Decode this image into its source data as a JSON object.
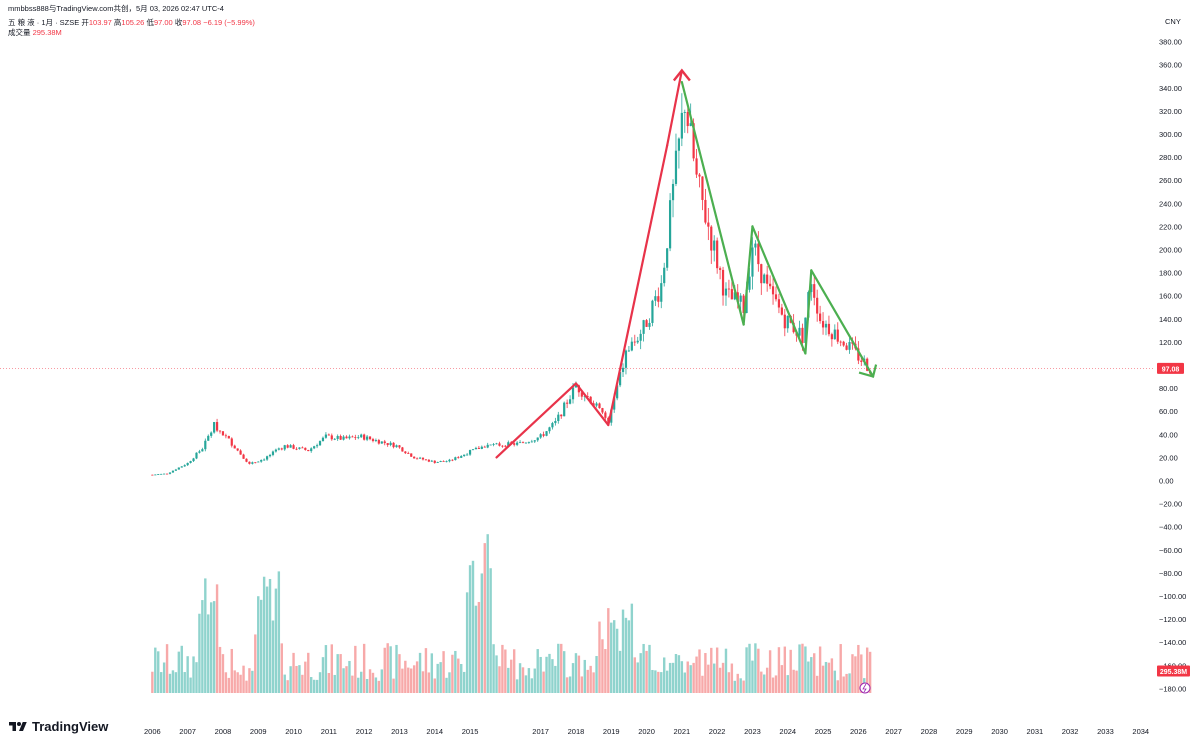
{
  "header": {
    "attribution": "mmbbss888与TradingView.com共创，5月 03, 2026 02:47 UTC-4"
  },
  "legend": {
    "symbol": "五 粮 液 · 1月 · SZSE",
    "open_label": "开",
    "open_value": "103.97",
    "high_label": "高",
    "high_value": "105.26",
    "low_label": "低",
    "low_value": "97.00",
    "close_label": "收",
    "close_value": "97.08",
    "change": "−6.19 (−5.99%)",
    "volume_label": "成交量",
    "volume_value": "295.38M"
  },
  "branding": {
    "logo_text": "TradingView",
    "icon": "tradingview-logo-icon"
  },
  "colors": {
    "up": "#26a69a",
    "down": "#f23645",
    "up_vol": "#8fd3cd",
    "down_vol": "#f7a9a9",
    "annot_red": "#e8334a",
    "annot_green": "#4caf50"
  },
  "chart_data": {
    "type": "candlestick",
    "currency": "CNY",
    "interval": "1月",
    "last_close": 97.08,
    "last_close_label": "97.08",
    "last_volume_label": "295.38M",
    "price_axis_ticks": [
      "380.00",
      "360.00",
      "340.00",
      "320.00",
      "300.00",
      "280.00",
      "260.00",
      "240.00",
      "220.00",
      "200.00",
      "180.00",
      "160.00",
      "140.00",
      "120.00",
      "100.00",
      "80.00",
      "60.00",
      "40.00",
      "20.00",
      "0.00",
      "−20.00",
      "−40.00",
      "−60.00",
      "−80.00",
      "−100.00",
      "−120.00",
      "−140.00",
      "−160.00",
      "−180.00"
    ],
    "x_axis_ticks": [
      "2006",
      "2007",
      "2008",
      "2009",
      "2010",
      "2011",
      "2012",
      "2013",
      "2014",
      "2015",
      "2017",
      "2018",
      "2019",
      "2020",
      "2021",
      "2022",
      "2023",
      "2024",
      "2025",
      "2026",
      "2027",
      "2028",
      "2029",
      "2030",
      "2031",
      "2032",
      "2033",
      "2034"
    ],
    "approx_monthly_close_path": [
      {
        "date": "2006-01",
        "price": 5
      },
      {
        "date": "2006-06",
        "price": 6
      },
      {
        "date": "2007-01",
        "price": 15
      },
      {
        "date": "2007-06",
        "price": 28
      },
      {
        "date": "2007-10",
        "price": 48
      },
      {
        "date": "2008-03",
        "price": 35
      },
      {
        "date": "2008-10",
        "price": 14
      },
      {
        "date": "2009-03",
        "price": 19
      },
      {
        "date": "2009-10",
        "price": 30
      },
      {
        "date": "2010-06",
        "price": 26
      },
      {
        "date": "2010-12",
        "price": 38
      },
      {
        "date": "2011-06",
        "price": 36
      },
      {
        "date": "2011-12",
        "price": 38
      },
      {
        "date": "2012-06",
        "price": 34
      },
      {
        "date": "2012-12",
        "price": 30
      },
      {
        "date": "2013-06",
        "price": 20
      },
      {
        "date": "2014-01",
        "price": 16
      },
      {
        "date": "2014-06",
        "price": 17
      },
      {
        "date": "2015-01",
        "price": 25
      },
      {
        "date": "2015-06",
        "price": 30
      },
      {
        "date": "2016-06",
        "price": 32
      },
      {
        "date": "2017-01",
        "price": 38
      },
      {
        "date": "2017-06",
        "price": 50
      },
      {
        "date": "2018-01",
        "price": 82
      },
      {
        "date": "2018-06",
        "price": 70
      },
      {
        "date": "2018-12",
        "price": 50
      },
      {
        "date": "2019-06",
        "price": 110
      },
      {
        "date": "2019-12",
        "price": 132
      },
      {
        "date": "2020-06",
        "price": 170
      },
      {
        "date": "2020-12",
        "price": 290
      },
      {
        "date": "2021-02",
        "price": 330
      },
      {
        "date": "2021-06",
        "price": 260
      },
      {
        "date": "2021-10",
        "price": 220
      },
      {
        "date": "2022-04",
        "price": 160
      },
      {
        "date": "2022-10",
        "price": 150
      },
      {
        "date": "2023-01",
        "price": 205
      },
      {
        "date": "2023-06",
        "price": 165
      },
      {
        "date": "2023-12",
        "price": 140
      },
      {
        "date": "2024-06",
        "price": 125
      },
      {
        "date": "2024-09",
        "price": 175
      },
      {
        "date": "2024-12",
        "price": 140
      },
      {
        "date": "2025-06",
        "price": 125
      },
      {
        "date": "2025-12",
        "price": 110
      },
      {
        "date": "2026-05",
        "price": 97
      }
    ],
    "annotation_lines": [
      {
        "color": "red",
        "from": {
          "date": "2015-10",
          "price": 20
        },
        "to": {
          "date": "2018-01",
          "price": 84
        }
      },
      {
        "color": "red",
        "from": {
          "date": "2018-01",
          "price": 84
        },
        "to": {
          "date": "2018-12",
          "price": 48
        }
      },
      {
        "color": "red",
        "from": {
          "date": "2018-12",
          "price": 48
        },
        "to": {
          "date": "2020-08",
          "price": 290
        }
      },
      {
        "color": "red",
        "from": {
          "date": "2020-08",
          "price": 290
        },
        "to": {
          "date": "2021-01",
          "price": 355
        }
      },
      {
        "color": "green",
        "from": {
          "date": "2021-01",
          "price": 345
        },
        "to": {
          "date": "2022-10",
          "price": 135
        }
      },
      {
        "color": "green",
        "from": {
          "date": "2022-10",
          "price": 135
        },
        "to": {
          "date": "2023-01",
          "price": 220
        }
      },
      {
        "color": "green",
        "from": {
          "date": "2023-01",
          "price": 220
        },
        "to": {
          "date": "2024-07",
          "price": 110
        }
      },
      {
        "color": "green",
        "from": {
          "date": "2024-07",
          "price": 110
        },
        "to": {
          "date": "2024-09",
          "price": 182
        }
      },
      {
        "color": "green",
        "from": {
          "date": "2024-09",
          "price": 182
        },
        "to": {
          "date": "2026-06",
          "price": 90
        }
      }
    ]
  }
}
